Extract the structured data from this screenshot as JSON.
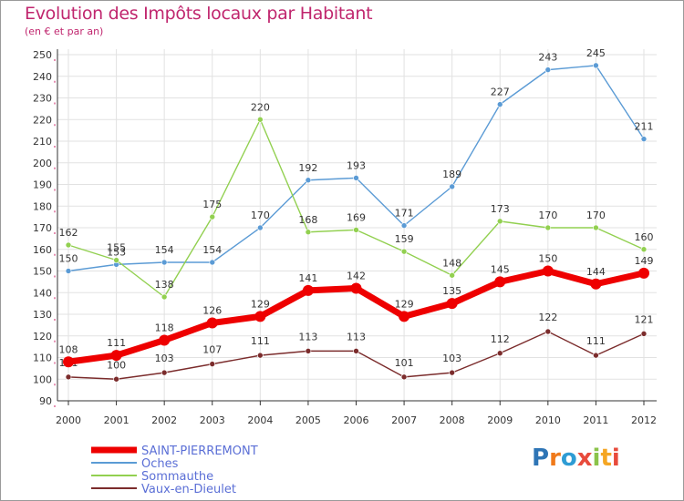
{
  "title": "Evolution des Impôts locaux par Habitant",
  "subtitle": "(en € et par an)",
  "logo": "Proxiti",
  "chart_data": {
    "type": "line",
    "title": "Evolution des Impôts locaux par Habitant",
    "subtitle": "(en € et par an)",
    "x": [
      "2000",
      "2001",
      "2002",
      "2003",
      "2004",
      "2005",
      "2006",
      "2007",
      "2008",
      "2009",
      "2010",
      "2011",
      "2012"
    ],
    "ylim": [
      90,
      250
    ],
    "yticks": [
      90,
      100,
      110,
      120,
      130,
      140,
      150,
      160,
      170,
      180,
      190,
      200,
      210,
      220,
      230,
      240,
      250
    ],
    "grid": true,
    "series": [
      {
        "name": "SAINT-PIERREMONT",
        "color": "#ee0000",
        "values": [
          108,
          111,
          118,
          126,
          129,
          141,
          142,
          129,
          135,
          145,
          150,
          144,
          149
        ]
      },
      {
        "name": "Oches",
        "color": "#5b9bd5",
        "values": [
          150,
          153,
          154,
          154,
          170,
          192,
          193,
          171,
          189,
          227,
          243,
          245,
          211
        ]
      },
      {
        "name": "Sommauthe",
        "color": "#92d050",
        "values": [
          162,
          155,
          138,
          175,
          220,
          168,
          169,
          159,
          148,
          173,
          170,
          170,
          160
        ]
      },
      {
        "name": "Vaux-en-Dieulet",
        "color": "#7b2c2c",
        "values": [
          101,
          100,
          103,
          107,
          111,
          113,
          113,
          101,
          103,
          112,
          122,
          111,
          121
        ]
      }
    ]
  }
}
